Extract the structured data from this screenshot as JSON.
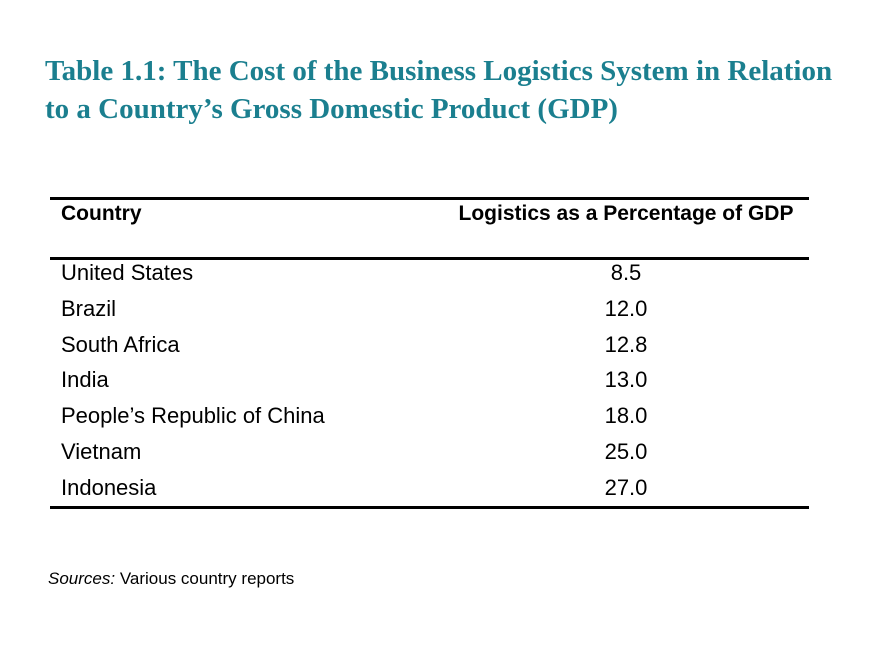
{
  "title": "Table 1.1: The Cost of the Business Logistics System in Relation to a Country’s Gross Domestic Product (GDP)",
  "table": {
    "header": [
      "Country",
      "Logistics as a Percentage of GDP"
    ],
    "rows": [
      [
        "United States",
        "8.5"
      ],
      [
        "Brazil",
        "12.0"
      ],
      [
        "South Africa",
        "12.8"
      ],
      [
        "India",
        "13.0"
      ],
      [
        "People’s Republic of China",
        "18.0"
      ],
      [
        "Vietnam",
        "25.0"
      ],
      [
        "Indonesia",
        "27.0"
      ]
    ]
  },
  "sources": {
    "label": "Sources:",
    "text": "Various country reports"
  }
}
